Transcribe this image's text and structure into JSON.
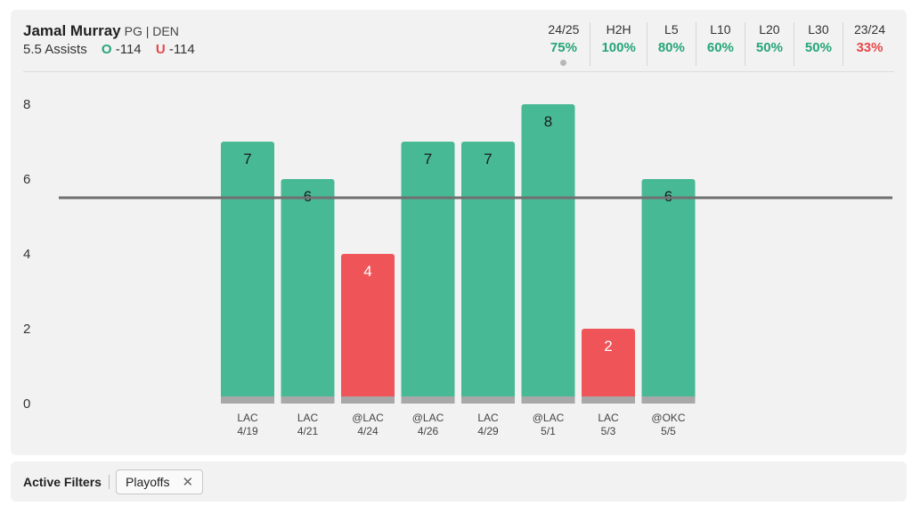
{
  "player": {
    "name": "Jamal Murray",
    "meta": "PG | DEN"
  },
  "line": {
    "prop": "5.5 Assists",
    "over_letter": "O",
    "over_odds": "-114",
    "under_letter": "U",
    "under_odds": "-114"
  },
  "stats": [
    {
      "label": "24/25",
      "value": "75%",
      "tone": "good",
      "selected": true
    },
    {
      "label": "H2H",
      "value": "100%",
      "tone": "good"
    },
    {
      "label": "L5",
      "value": "80%",
      "tone": "good"
    },
    {
      "label": "L10",
      "value": "60%",
      "tone": "good"
    },
    {
      "label": "L20",
      "value": "50%",
      "tone": "good"
    },
    {
      "label": "L30",
      "value": "50%",
      "tone": "good"
    },
    {
      "label": "23/24",
      "value": "33%",
      "tone": "bad"
    }
  ],
  "colors": {
    "over": "#47b994",
    "under": "#ef5558",
    "good_text": "#25a577",
    "bad_text": "#e8474a",
    "baseline": "#a8a8a8",
    "line": "#707070"
  },
  "chart_data": {
    "type": "bar",
    "threshold": 5.5,
    "ylim": [
      0,
      8
    ],
    "yticks": [
      0,
      2,
      4,
      6,
      8
    ],
    "categories": [
      {
        "opp": "LAC",
        "date": "4/19"
      },
      {
        "opp": "LAC",
        "date": "4/21"
      },
      {
        "opp": "@LAC",
        "date": "4/24"
      },
      {
        "opp": "@LAC",
        "date": "4/26"
      },
      {
        "opp": "LAC",
        "date": "4/29"
      },
      {
        "opp": "@LAC",
        "date": "5/1"
      },
      {
        "opp": "LAC",
        "date": "5/3"
      },
      {
        "opp": "@OKC",
        "date": "5/5"
      }
    ],
    "values": [
      7,
      6,
      4,
      7,
      7,
      8,
      2,
      6
    ],
    "xlabel": "",
    "ylabel": ""
  },
  "filters": {
    "title": "Active Filters",
    "chips": [
      "Playoffs"
    ],
    "remove_glyph": "✕"
  }
}
